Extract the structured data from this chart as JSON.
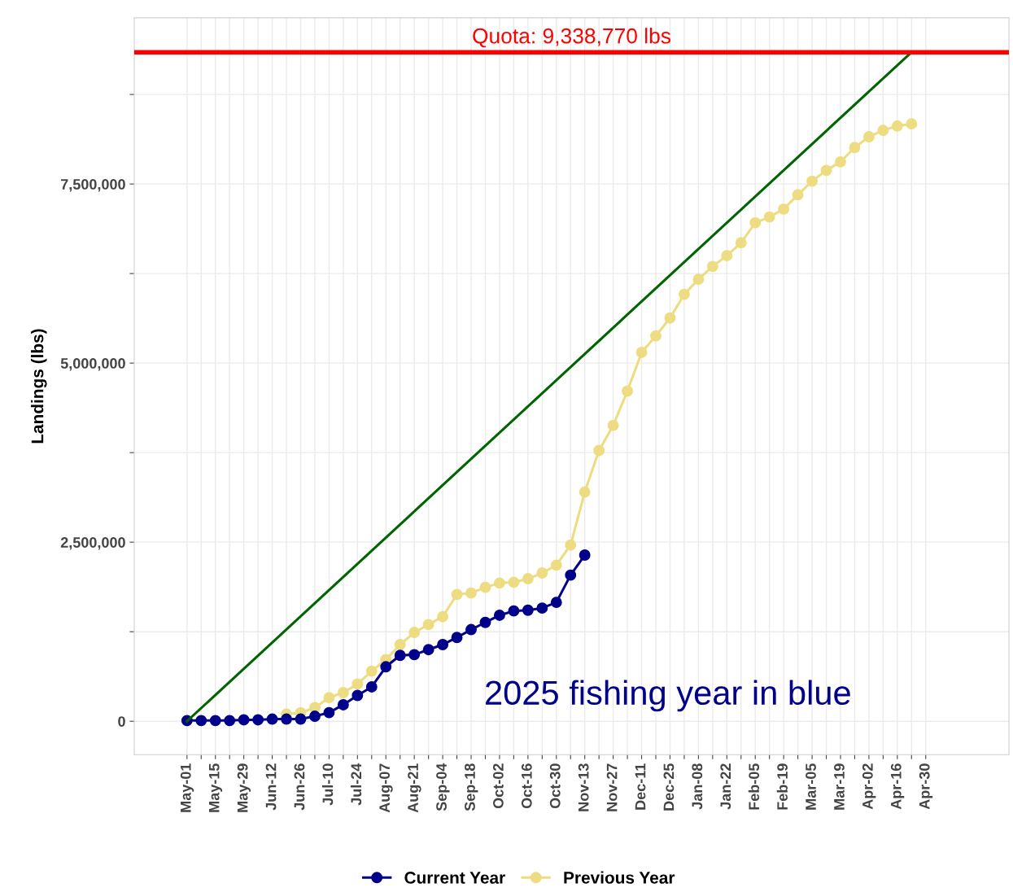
{
  "chart_data": {
    "type": "line",
    "ylabel": "Landings (lbs)",
    "series": [
      {
        "name": "Previous Year",
        "color": "#eedc82",
        "marker": "circle",
        "x": [
          "2025-06-19",
          "2025-06-26",
          "2025-07-03",
          "2025-07-10",
          "2025-07-17",
          "2025-07-24",
          "2025-07-31",
          "2025-08-07",
          "2025-08-14",
          "2025-08-21",
          "2025-08-28",
          "2025-09-04",
          "2025-09-11",
          "2025-09-18",
          "2025-09-25",
          "2025-10-02",
          "2025-10-09",
          "2025-10-16",
          "2025-10-23",
          "2025-10-30",
          "2025-11-06",
          "2025-11-13",
          "2025-11-20",
          "2025-11-27",
          "2025-12-04",
          "2025-12-11",
          "2025-12-18",
          "2025-12-25",
          "2026-01-01",
          "2026-01-08",
          "2026-01-15",
          "2026-01-22",
          "2026-01-29",
          "2026-02-05",
          "2026-02-12",
          "2026-02-19",
          "2026-02-26",
          "2026-03-05",
          "2026-03-12",
          "2026-03-19",
          "2026-03-26",
          "2026-04-02",
          "2026-04-09",
          "2026-04-16",
          "2026-04-23"
        ],
        "values": [
          100000,
          120000,
          190000,
          330000,
          400000,
          520000,
          700000,
          860000,
          1070000,
          1240000,
          1350000,
          1460000,
          1770000,
          1790000,
          1870000,
          1930000,
          1940000,
          1990000,
          2070000,
          2180000,
          2460000,
          3200000,
          3780000,
          4130000,
          4610000,
          5150000,
          5380000,
          5630000,
          5960000,
          6170000,
          6350000,
          6500000,
          6680000,
          6960000,
          7040000,
          7150000,
          7350000,
          7540000,
          7690000,
          7810000,
          8010000,
          8160000,
          8250000,
          8310000,
          8340000
        ]
      },
      {
        "name": "Current Year",
        "color": "#00008b",
        "marker": "circle",
        "x": [
          "2025-05-01",
          "2025-05-08",
          "2025-05-15",
          "2025-05-22",
          "2025-05-29",
          "2025-06-05",
          "2025-06-12",
          "2025-06-19",
          "2025-06-26",
          "2025-07-03",
          "2025-07-10",
          "2025-07-17",
          "2025-07-24",
          "2025-07-31",
          "2025-08-07",
          "2025-08-14",
          "2025-08-21",
          "2025-08-28",
          "2025-09-04",
          "2025-09-11",
          "2025-09-18",
          "2025-09-25",
          "2025-10-02",
          "2025-10-09",
          "2025-10-16",
          "2025-10-23",
          "2025-10-30",
          "2025-11-06",
          "2025-11-13"
        ],
        "values": [
          10000,
          10000,
          10000,
          10000,
          20000,
          20000,
          30000,
          30000,
          30000,
          70000,
          120000,
          230000,
          360000,
          480000,
          760000,
          920000,
          930000,
          1000000,
          1070000,
          1170000,
          1280000,
          1380000,
          1480000,
          1540000,
          1550000,
          1580000,
          1660000,
          2040000,
          2320000
        ]
      },
      {
        "color": "#006400",
        "marker": "none",
        "x": [
          "2025-05-01",
          "2026-04-23"
        ],
        "values": [
          0,
          9340000
        ]
      }
    ],
    "xlim": [
      "2025-04-05",
      "2026-06-10"
    ],
    "xticks": [
      {
        "value": "2025-05-01",
        "label": "May-01"
      },
      {
        "value": "2025-05-08",
        "label": null
      },
      {
        "value": "2025-05-15",
        "label": "May-15"
      },
      {
        "value": "2025-05-22",
        "label": null
      },
      {
        "value": "2025-05-29",
        "label": "May-29"
      },
      {
        "value": "2025-06-05",
        "label": null
      },
      {
        "value": "2025-06-12",
        "label": "Jun-12"
      },
      {
        "value": "2025-06-19",
        "label": null
      },
      {
        "value": "2025-06-26",
        "label": "Jun-26"
      },
      {
        "value": "2025-07-03",
        "label": null
      },
      {
        "value": "2025-07-10",
        "label": "Jul-10"
      },
      {
        "value": "2025-07-17",
        "label": null
      },
      {
        "value": "2025-07-24",
        "label": "Jul-24"
      },
      {
        "value": "2025-07-31",
        "label": null
      },
      {
        "value": "2025-08-07",
        "label": "Aug-07"
      },
      {
        "value": "2025-08-14",
        "label": null
      },
      {
        "value": "2025-08-21",
        "label": "Aug-21"
      },
      {
        "value": "2025-08-28",
        "label": null
      },
      {
        "value": "2025-09-04",
        "label": "Sep-04"
      },
      {
        "value": "2025-09-11",
        "label": null
      },
      {
        "value": "2025-09-18",
        "label": "Sep-18"
      },
      {
        "value": "2025-09-25",
        "label": null
      },
      {
        "value": "2025-10-02",
        "label": "Oct-02"
      },
      {
        "value": "2025-10-09",
        "label": null
      },
      {
        "value": "2025-10-16",
        "label": "Oct-16"
      },
      {
        "value": "2025-10-23",
        "label": null
      },
      {
        "value": "2025-10-30",
        "label": "Oct-30"
      },
      {
        "value": "2025-11-06",
        "label": null
      },
      {
        "value": "2025-11-13",
        "label": "Nov-13"
      },
      {
        "value": "2025-11-20",
        "label": null
      },
      {
        "value": "2025-11-27",
        "label": "Nov-27"
      },
      {
        "value": "2025-12-04",
        "label": null
      },
      {
        "value": "2025-12-11",
        "label": "Dec-11"
      },
      {
        "value": "2025-12-18",
        "label": null
      },
      {
        "value": "2025-12-25",
        "label": "Dec-25"
      },
      {
        "value": "2026-01-01",
        "label": null
      },
      {
        "value": "2026-01-08",
        "label": "Jan-08"
      },
      {
        "value": "2026-01-15",
        "label": null
      },
      {
        "value": "2026-01-22",
        "label": "Jan-22"
      },
      {
        "value": "2026-01-29",
        "label": null
      },
      {
        "value": "2026-02-05",
        "label": "Feb-05"
      },
      {
        "value": "2026-02-12",
        "label": null
      },
      {
        "value": "2026-02-19",
        "label": "Feb-19"
      },
      {
        "value": "2026-02-26",
        "label": null
      },
      {
        "value": "2026-03-05",
        "label": "Mar-05"
      },
      {
        "value": "2026-03-12",
        "label": null
      },
      {
        "value": "2026-03-19",
        "label": "Mar-19"
      },
      {
        "value": "2026-03-26",
        "label": null
      },
      {
        "value": "2026-04-02",
        "label": "Apr-02"
      },
      {
        "value": "2026-04-09",
        "label": null
      },
      {
        "value": "2026-04-16",
        "label": "Apr-16"
      },
      {
        "value": "2026-04-23",
        "label": null
      },
      {
        "value": "2026-04-30",
        "label": "Apr-30"
      }
    ],
    "ylim": [
      -466000,
      9820000
    ],
    "yticks": [
      {
        "value": 0,
        "label": "0"
      },
      {
        "value": 1250000,
        "label": null
      },
      {
        "value": 2500000,
        "label": "2,500,000"
      },
      {
        "value": 3750000,
        "label": null
      },
      {
        "value": 5000000,
        "label": "5,000,000"
      },
      {
        "value": 6250000,
        "label": null
      },
      {
        "value": 7500000,
        "label": "7,500,000"
      },
      {
        "value": 8750000,
        "label": null
      }
    ],
    "ref_lines": [
      {
        "axis": "y",
        "value": 9338770,
        "label": "Quota: 9,338,770 lbs",
        "color": "#ff0000"
      }
    ],
    "annotations": [
      "2025 fishing year in blue"
    ],
    "legend": "bottom",
    "grid": true,
    "line_style": "solid"
  }
}
